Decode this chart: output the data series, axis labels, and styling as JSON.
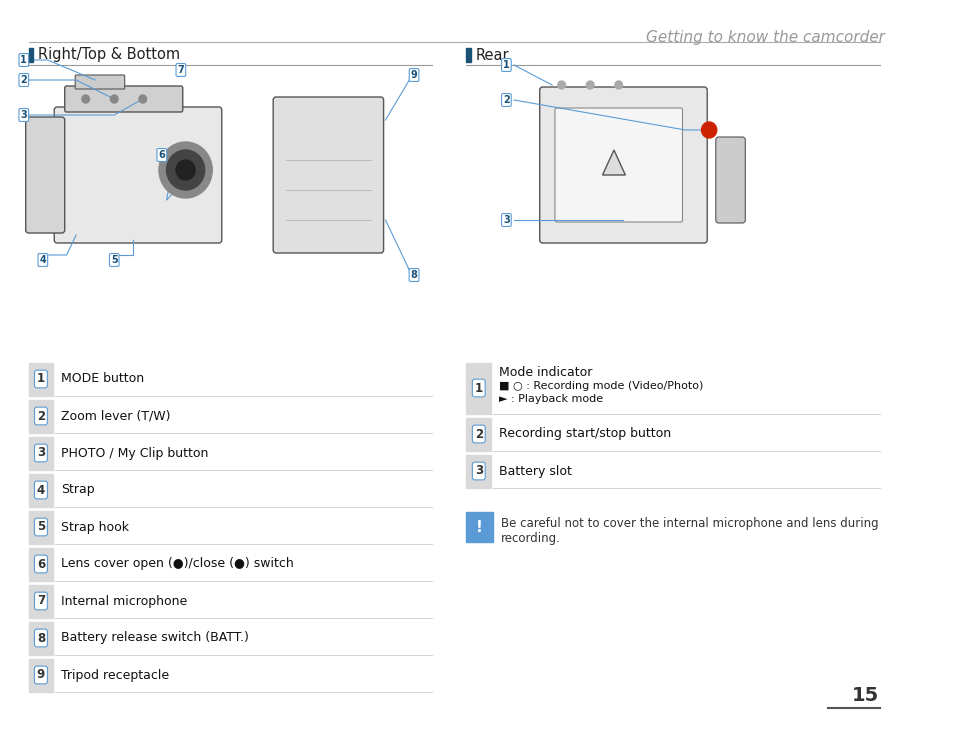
{
  "page_title": "Getting to know the camcorder",
  "page_number": "15",
  "section_left": "Right/Top & Bottom",
  "section_right": "Rear",
  "left_items": [
    {
      "num": "1",
      "text": "MODE button"
    },
    {
      "num": "2",
      "text": "Zoom lever (T/W)"
    },
    {
      "num": "3",
      "text": "PHOTO / My Clip button"
    },
    {
      "num": "4",
      "text": "Strap"
    },
    {
      "num": "5",
      "text": "Strap hook"
    },
    {
      "num": "6",
      "text": "Lens cover open (●)/close (●) switch"
    },
    {
      "num": "7",
      "text": "Internal microphone"
    },
    {
      "num": "8",
      "text": "Battery release switch (BATT.)"
    },
    {
      "num": "9",
      "text": "Tripod receptacle"
    }
  ],
  "right_items": [
    {
      "num": "1",
      "text": "Mode indicator\n■ ○ : Recording mode (Video/Photo)\n► : Playback mode"
    },
    {
      "num": "2",
      "text": "Recording start/stop button"
    },
    {
      "num": "3",
      "text": "Battery slot"
    }
  ],
  "warning_text": "Be careful not to cover the internal microphone and lens during\nrecording.",
  "bg_color": "#ffffff",
  "title_color": "#999999",
  "header_line_color": "#cccccc",
  "section_header_color": "#333333",
  "item_bg_color": "#d9d9d9",
  "item_border_color": "#5b9bd5",
  "item_text_color": "#000000",
  "divider_color": "#cccccc",
  "warning_bg": "#5b9bd5",
  "body_font_size": 9.5,
  "small_font_size": 8.5
}
